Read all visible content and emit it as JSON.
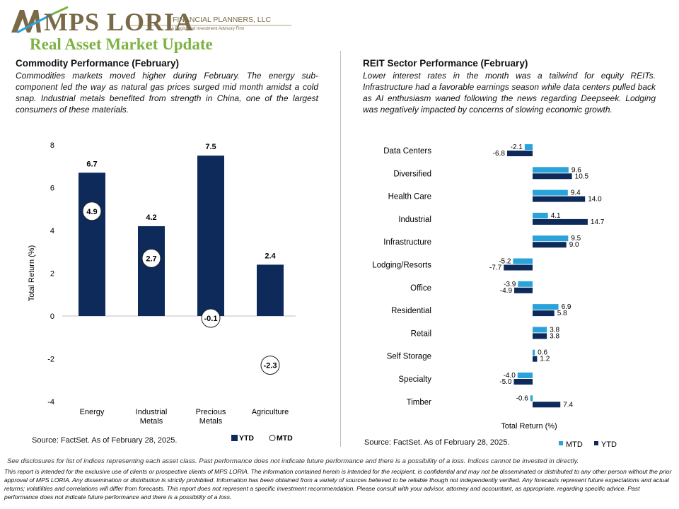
{
  "brand": {
    "logo_text": "MPS LORIA",
    "logo_sub1": "FINANCIAL PLANNERS, LLC",
    "logo_sub2": "A Registered Investment Advisory Firm"
  },
  "page_title": "Real Asset Market Update",
  "left": {
    "title": "Commodity  Performance (February)",
    "body": "Commodities markets moved higher during February. The energy sub-component led the way  as natural gas prices surged mid month amidst a cold snap. Industrial metals benefited from strength in China, one of the largest consumers of these materials.",
    "source": "Source: FactSet. As of February 28, 2025."
  },
  "right": {
    "title": "REIT Sector Performance (February)",
    "body": "Lower interest rates in the month was a tailwind for equity REITs. Infrastructure had a favorable earnings season while data centers pulled back as AI enthusiasm waned  following the news regarding Deepseek. Lodging was negatively impacted by concerns of slowing economic growth.",
    "source": "Source: FactSet. As of February 28, 2025."
  },
  "colors": {
    "ytd_bar": "#0d2a5a",
    "mtd_bar": "#2aa3db",
    "title_green": "#7cb342"
  },
  "chart_data": [
    {
      "type": "bar",
      "categories": [
        "Energy",
        "Industrial Metals",
        "Precious Metals",
        "Agriculture"
      ],
      "category_lines": [
        [
          "Energy"
        ],
        [
          "Industrial",
          "Metals"
        ],
        [
          "Precious",
          "Metals"
        ],
        [
          "Agriculture"
        ]
      ],
      "series": [
        {
          "name": "YTD",
          "values": [
            6.7,
            4.2,
            7.5,
            2.4
          ],
          "style": "bar"
        },
        {
          "name": "MTD",
          "values": [
            4.9,
            2.7,
            -0.1,
            -2.3
          ],
          "style": "circle-marker"
        }
      ],
      "title": "",
      "xlabel": "",
      "ylabel": "Total Return (%)",
      "ylim": [
        -4,
        8
      ],
      "yticks": [
        -4,
        -2,
        0,
        2,
        4,
        6,
        8
      ],
      "grid": false,
      "legend": "bottom-right"
    },
    {
      "type": "bar",
      "orientation": "horizontal",
      "categories": [
        "Data Centers",
        "Diversified",
        "Health Care",
        "Industrial",
        "Infrastructure",
        "Lodging/Resorts",
        "Office",
        "Residential",
        "Retail",
        "Self Storage",
        "Specialty",
        "Timber"
      ],
      "series": [
        {
          "name": "MTD",
          "values": [
            -2.1,
            9.6,
            9.4,
            4.1,
            9.5,
            -5.2,
            -3.9,
            6.9,
            3.8,
            0.6,
            -4.0,
            -0.6
          ]
        },
        {
          "name": "YTD",
          "values": [
            -6.8,
            10.5,
            14.0,
            14.7,
            9.0,
            -7.7,
            -4.9,
            5.8,
            3.8,
            1.2,
            -5.0,
            7.4
          ]
        }
      ],
      "title": "",
      "xlabel": "Total Return (%)",
      "ylabel": "",
      "grid": false,
      "legend": "bottom-right"
    }
  ],
  "disclaimer": {
    "main": "See disclosures for list of indices representing each asset class. Past performance does not indicate future performance and there is a possibility of a loss. Indices cannot be invested in directly.",
    "legal": "This report is intended for the exclusive use of clients or prospective clients of MPS LORIA. The information contained herein is intended for the recipient, is confidential and may not be disseminated or distributed to any other person without the prior approval of MPS LORIA. Any dissemination or distribution is strictly prohibited. Information has been obtained from a variety of sources believed to be reliable though not independently verified. Any forecasts represent future expectations and actual returns; volatilities and correlations will differ from forecasts. This report does not represent a specific investment recommendation. Please consult with your advisor, attorney and accountant, as appropriate, regarding specific advice. Past performance does not indicate future performance and there is a possibility of a loss."
  }
}
